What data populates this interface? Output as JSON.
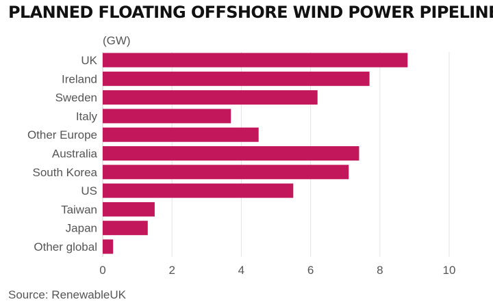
{
  "chart_data": {
    "type": "bar",
    "orientation": "horizontal",
    "title": "PLANNED FLOATING OFFSHORE WIND POWER PIPELINE",
    "unit_label": "(GW)",
    "source": "Source: RenewableUK",
    "categories": [
      "UK",
      "Ireland",
      "Sweden",
      "Italy",
      "Other Europe",
      "Australia",
      "South Korea",
      "US",
      "Taiwan",
      "Japan",
      "Other global"
    ],
    "values": [
      8.8,
      7.7,
      6.2,
      3.7,
      4.5,
      7.4,
      7.1,
      5.5,
      1.5,
      1.3,
      0.3
    ],
    "xlim": [
      0,
      10
    ],
    "xticks": [
      0,
      2,
      4,
      6,
      8,
      10
    ],
    "grid": true,
    "bar_color": "#c2185b"
  }
}
